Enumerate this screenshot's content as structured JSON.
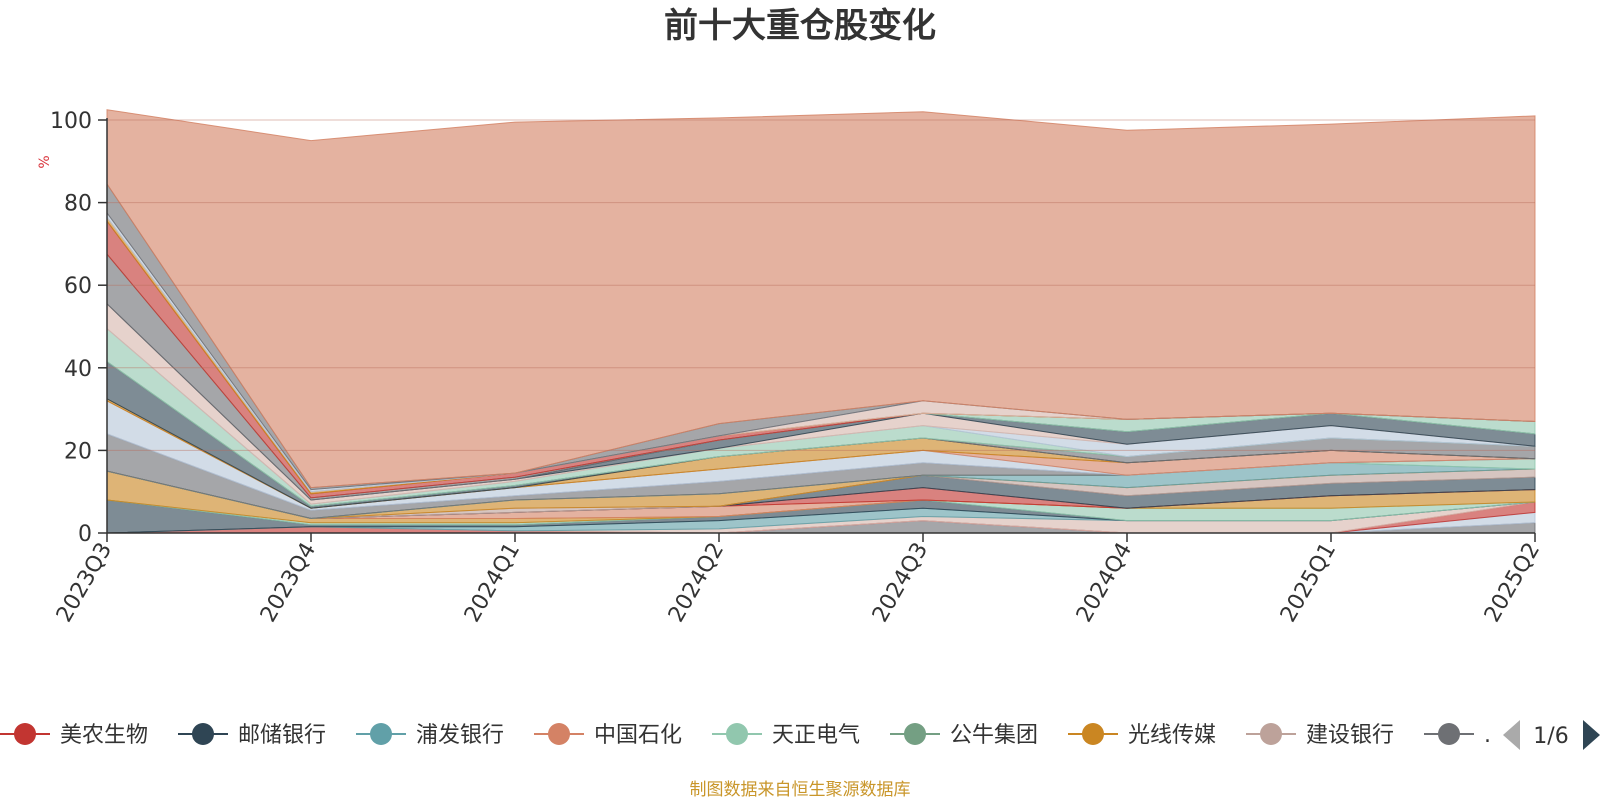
{
  "chart_data": {
    "type": "area",
    "stacked": true,
    "title": "前十大重仓股变化",
    "ylabel": "%",
    "ylim": [
      0,
      100
    ],
    "yticks": [
      0,
      20,
      40,
      60,
      80,
      100
    ],
    "grid": true,
    "legend_position": "bottom",
    "x": [
      "2023Q3",
      "2023Q4",
      "2024Q1",
      "2024Q2",
      "2024Q3",
      "2024Q4",
      "2025Q1",
      "2025Q2"
    ],
    "series": [
      {
        "name": "",
        "color": "#6e7074",
        "values": [
          0,
          0,
          0,
          0,
          3,
          0,
          0,
          2.5
        ]
      },
      {
        "name": "",
        "color": "#b7c6d8",
        "values": [
          0,
          0,
          0,
          0,
          0,
          0,
          0,
          2.5
        ]
      },
      {
        "name": "",
        "color": "#c23531",
        "values": [
          0,
          1.5,
          0.5,
          0,
          0,
          0,
          0,
          2.5
        ]
      },
      {
        "name": "",
        "color": "#d6b6ad",
        "values": [
          0,
          0,
          0,
          1,
          1,
          3,
          3,
          0
        ]
      },
      {
        "name": "",
        "color": "#61a0a8",
        "values": [
          0,
          0,
          1,
          2,
          2,
          0,
          0,
          0
        ]
      },
      {
        "name": "",
        "color": "#2f4554",
        "values": [
          8,
          0.5,
          0.5,
          1,
          2,
          0,
          0,
          0
        ]
      },
      {
        "name": "",
        "color": "#91c7ae",
        "values": [
          0,
          0.5,
          0.5,
          0,
          0,
          3,
          3,
          0
        ]
      },
      {
        "name": "",
        "color": "#ca8622",
        "values": [
          7,
          1,
          1,
          0,
          0,
          0,
          3,
          3
        ]
      },
      {
        "name": "",
        "color": "#d48265",
        "values": [
          0,
          0,
          1.5,
          2.5,
          0,
          0,
          0,
          0
        ]
      },
      {
        "name": "",
        "color": "#c23531",
        "values": [
          0,
          0,
          0,
          0,
          3,
          0,
          0,
          0
        ]
      },
      {
        "name": "",
        "color": "#2f4554",
        "values": [
          0,
          0,
          0,
          0,
          3,
          3,
          3,
          3
        ]
      },
      {
        "name": "",
        "color": "#bda29a",
        "values": [
          0,
          0,
          1,
          0,
          0,
          2,
          2,
          2
        ]
      },
      {
        "name": "",
        "color": "#ca8622",
        "values": [
          0,
          0,
          2,
          3,
          0,
          0,
          0,
          0
        ]
      },
      {
        "name": "",
        "color": "#61a0a8",
        "values": [
          0,
          0,
          0,
          0,
          0,
          3,
          3,
          0
        ]
      },
      {
        "name": "",
        "color": "#91c7ae",
        "values": [
          0,
          0,
          0,
          0,
          0,
          0,
          0,
          2.5
        ]
      },
      {
        "name": "",
        "color": "#6e7074",
        "values": [
          9,
          2,
          1,
          3,
          3,
          0,
          0,
          0
        ]
      },
      {
        "name": "",
        "color": "#b7c6d8",
        "values": [
          8,
          0.5,
          2,
          3,
          3,
          0,
          0,
          0
        ]
      },
      {
        "name": "",
        "color": "#d48265",
        "values": [
          0,
          0,
          0,
          0,
          0,
          3,
          3,
          0
        ]
      },
      {
        "name": "",
        "color": "#ca8622",
        "values": [
          0.5,
          0,
          0,
          3,
          3,
          0,
          0,
          0
        ]
      },
      {
        "name": "",
        "color": "#2f4554",
        "values": [
          9,
          0.5,
          0.5,
          0,
          0,
          0,
          0,
          0
        ]
      },
      {
        "name": "",
        "color": "#6e7074",
        "values": [
          0,
          0,
          0,
          0,
          0,
          1.5,
          3,
          3
        ]
      },
      {
        "name": "",
        "color": "#91c7ae",
        "values": [
          8,
          0.5,
          1,
          2,
          3,
          0,
          0,
          0
        ]
      },
      {
        "name": "",
        "color": "#b7c6d8",
        "values": [
          0,
          0,
          0,
          0,
          0,
          3,
          3,
          0
        ]
      },
      {
        "name": "",
        "color": "#d6b6ad",
        "values": [
          6,
          1,
          0.5,
          0,
          3,
          0,
          0,
          0
        ]
      },
      {
        "name": "",
        "color": "#2f4554",
        "values": [
          0,
          0,
          0,
          2,
          0,
          3,
          3,
          3
        ]
      },
      {
        "name": "",
        "color": "#6e7074",
        "values": [
          12,
          0.5,
          0.5,
          0,
          0,
          0,
          0,
          0
        ]
      },
      {
        "name": "",
        "color": "#91c7ae",
        "values": [
          0,
          0,
          0,
          0,
          0,
          3,
          0,
          3
        ]
      },
      {
        "name": "",
        "color": "#c23531",
        "values": [
          8,
          1,
          1,
          1,
          0,
          0,
          0,
          0
        ]
      },
      {
        "name": "",
        "color": "#ca8622",
        "values": [
          1,
          0.5,
          0,
          0,
          0,
          0,
          0,
          0
        ]
      },
      {
        "name": "",
        "color": "#d6b6ad",
        "values": [
          0,
          0,
          0,
          0,
          3,
          0,
          0,
          0
        ]
      },
      {
        "name": "",
        "color": "#b7c6d8",
        "values": [
          1,
          0.5,
          0,
          0,
          0,
          0,
          0,
          0
        ]
      },
      {
        "name": "",
        "color": "#6e7074",
        "values": [
          7,
          0.5,
          0,
          3,
          0,
          0,
          0,
          0
        ]
      },
      {
        "name": "",
        "color": "#d48265",
        "values": [
          18,
          84,
          85,
          74,
          70,
          70,
          70,
          74
        ]
      }
    ],
    "legend": [
      {
        "name": "美农生物",
        "color": "#c23531"
      },
      {
        "name": "邮储银行",
        "color": "#2f4554"
      },
      {
        "name": "浦发银行",
        "color": "#61a0a8"
      },
      {
        "name": "中国石化",
        "color": "#d48265"
      },
      {
        "name": "天正电气",
        "color": "#91c7ae"
      },
      {
        "name": "公牛集团",
        "color": "#749f83"
      },
      {
        "name": "光线传媒",
        "color": "#ca8622"
      },
      {
        "name": "建设银行",
        "color": "#bda29a"
      },
      {
        "name": ".",
        "color": "#6e7074"
      }
    ],
    "legend_page": "1/6",
    "source_note": "制图数据来自恒生聚源数据库"
  }
}
